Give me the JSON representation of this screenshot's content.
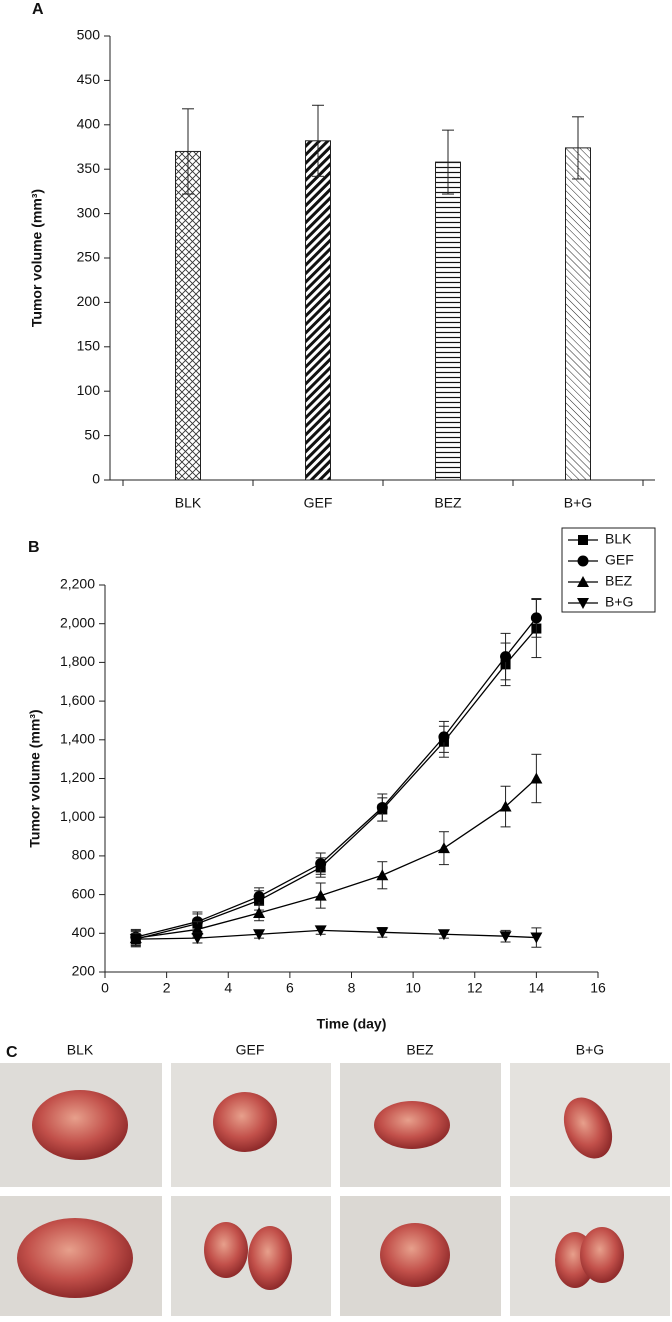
{
  "panel_labels": [
    "A",
    "B",
    "C"
  ],
  "chart_data": [
    {
      "type": "bar",
      "ylabel": "Tumor volume (mm³)",
      "categories": [
        "BLK",
        "GEF",
        "BEZ",
        "B+G"
      ],
      "values": [
        370,
        382,
        358,
        374
      ],
      "errors": [
        48,
        40,
        36,
        35
      ],
      "patterns": [
        "crosshatch",
        "diagonal-bold",
        "horizontal",
        "diagonal"
      ],
      "ylim": [
        0,
        500
      ],
      "yticks": [
        0,
        50,
        100,
        150,
        200,
        250,
        300,
        350,
        400,
        450,
        500
      ]
    },
    {
      "type": "line",
      "xlabel": "Time (day)",
      "ylabel": "Tumor volume (mm³)",
      "x": [
        1,
        3,
        5,
        7,
        9,
        11,
        13,
        14
      ],
      "series": [
        {
          "name": "BLK",
          "color": "#000000",
          "marker": "square",
          "values": [
            370,
            450,
            570,
            740,
            1040,
            1390,
            1790,
            1975
          ],
          "errors": [
            40,
            50,
            50,
            50,
            60,
            80,
            110,
            150
          ]
        },
        {
          "name": "GEF",
          "color": "#000000",
          "marker": "circle",
          "values": [
            380,
            460,
            590,
            760,
            1050,
            1415,
            1830,
            2030
          ],
          "errors": [
            40,
            50,
            45,
            55,
            70,
            80,
            120,
            100
          ]
        },
        {
          "name": "BEZ",
          "color": "#000000",
          "marker": "triangle-up",
          "values": [
            375,
            420,
            505,
            595,
            700,
            840,
            1055,
            1200
          ],
          "errors": [
            40,
            40,
            40,
            65,
            70,
            85,
            105,
            125
          ]
        },
        {
          "name": "B+G",
          "color": "#000000",
          "marker": "triangle-down",
          "values": [
            370,
            375,
            395,
            415,
            405,
            395,
            385,
            378
          ],
          "errors": [
            30,
            25,
            20,
            20,
            25,
            20,
            30,
            50
          ]
        }
      ],
      "xlim": [
        0,
        16
      ],
      "xticks": [
        0,
        2,
        4,
        6,
        8,
        10,
        12,
        14,
        16
      ],
      "ylim": [
        200,
        2200
      ],
      "yticks": [
        200,
        400,
        600,
        800,
        {
          "value": 1000,
          "label": "1,000"
        },
        {
          "value": 1200,
          "label": "1,200"
        },
        {
          "value": 1400,
          "label": "1,400"
        },
        {
          "value": 1600,
          "label": "1,600"
        },
        {
          "value": 1800,
          "label": "1,800"
        },
        {
          "value": 2000,
          "label": "2,000"
        },
        {
          "value": 2200,
          "label": "2,200"
        }
      ],
      "legend": "top-right"
    }
  ],
  "photos": {
    "labels": [
      "BLK",
      "GEF",
      "BEZ",
      "B+G"
    ]
  }
}
